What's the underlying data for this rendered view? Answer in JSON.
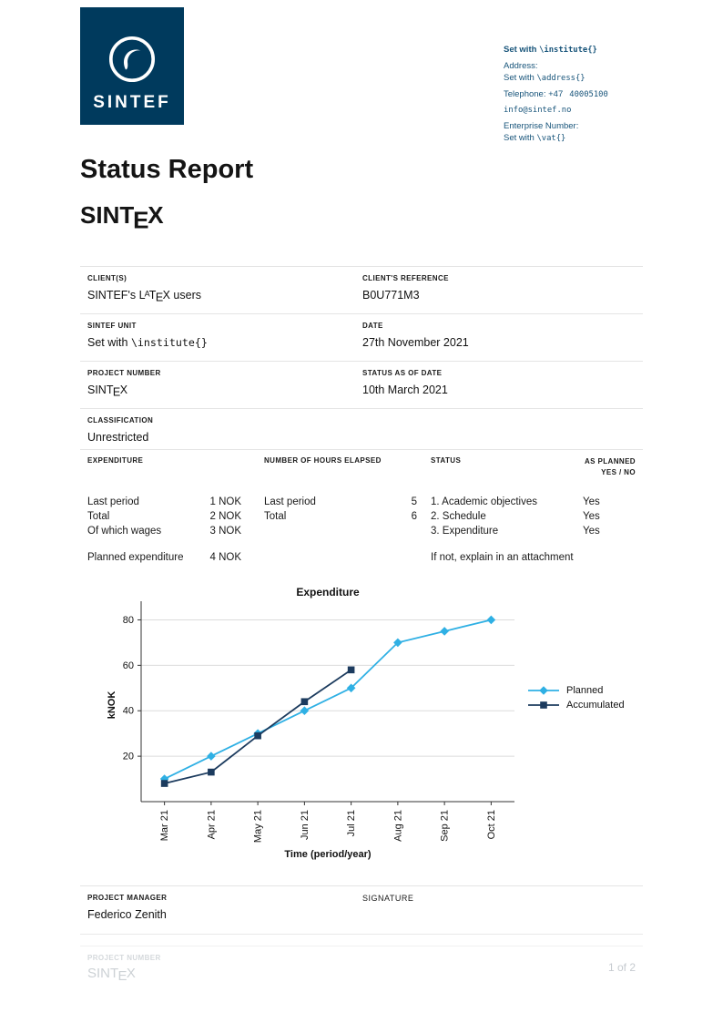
{
  "brand": {
    "name": "SINTEF"
  },
  "contact": {
    "institute_prefix": "Set with ",
    "institute_code": "\\institute{}",
    "address_label": "Address:",
    "address_prefix": "Set with ",
    "address_code": "\\address{}",
    "phone_label": "Telephone: +47",
    "phone_number": "40005100",
    "email": "info@sintef.no",
    "enterprise_label": "Enterprise Number:",
    "vat_prefix": "Set with ",
    "vat_code": "\\vat{}"
  },
  "report": {
    "title": "Status Report"
  },
  "latex_logo": {
    "l": "L",
    "a": "A",
    "t": "T",
    "e": "E",
    "x": "X"
  },
  "sintex_logo": {
    "pre": "SINT",
    "e": "E",
    "x": "X"
  },
  "fields": {
    "client_label": "CLIENT(S)",
    "client_value_pre": "SINTEF's ",
    "client_value_post": " users",
    "client_ref_label": "CLIENT'S REFERENCE",
    "client_ref_value": "B0U771M3",
    "unit_label": "SINTEF UNIT",
    "unit_value_prefix": "Set with ",
    "unit_value_code": "\\institute{}",
    "date_label": "DATE",
    "date_value": "27th November 2021",
    "project_number_label": "PROJECT NUMBER",
    "status_date_label": "STATUS AS OF DATE",
    "status_date_value": "10th March 2021",
    "classification_label": "CLASSIFICATION",
    "classification_value": "Unrestricted"
  },
  "expenditure": {
    "header_expenditure": "EXPENDITURE",
    "header_hours": "NUMBER OF HOURS ELAPSED",
    "header_status": "STATUS",
    "header_planned1": "AS PLANNED",
    "header_planned2": "YES / NO",
    "exp_rows": [
      {
        "label": "Last period",
        "value": "1 NOK"
      },
      {
        "label": "Total",
        "value": "2 NOK"
      },
      {
        "label": "Of which wages",
        "value": "3 NOK"
      }
    ],
    "planned_row": {
      "label": "Planned expenditure",
      "value": "4 NOK"
    },
    "hours_rows": [
      {
        "label": "Last period",
        "value": "5"
      },
      {
        "label": "Total",
        "value": "6"
      }
    ],
    "status_items": [
      "1. Academic objectives",
      "2. Schedule",
      "3. Expenditure"
    ],
    "status_note": "If not, explain in an attachment",
    "as_planned": [
      "Yes",
      "Yes",
      "Yes"
    ]
  },
  "chart_data": {
    "type": "line",
    "title": "Expenditure",
    "xlabel": "Time (period/year)",
    "ylabel": "kNOK",
    "categories": [
      "Mar 21",
      "Apr 21",
      "May 21",
      "Jun 21",
      "Jul 21",
      "Aug 21",
      "Sep 21",
      "Oct 21"
    ],
    "series": [
      {
        "name": "Planned",
        "color": "#2fb0e4",
        "marker": "diamond",
        "values": [
          10,
          20,
          30,
          40,
          50,
          70,
          75,
          80
        ]
      },
      {
        "name": "Accumulated",
        "color": "#1c3b5e",
        "marker": "square",
        "values": [
          8,
          13,
          29,
          44,
          58
        ]
      }
    ],
    "ylim": [
      0,
      85
    ],
    "yticks": [
      20,
      40,
      60,
      80
    ],
    "grid": true,
    "legend_position": "right"
  },
  "manager": {
    "label": "PROJECT MANAGER",
    "name": "Federico Zenith",
    "signature_label": "SIGNATURE"
  },
  "footer": {
    "project_number_label": "PROJECT NUMBER",
    "page": "1 of 2"
  }
}
